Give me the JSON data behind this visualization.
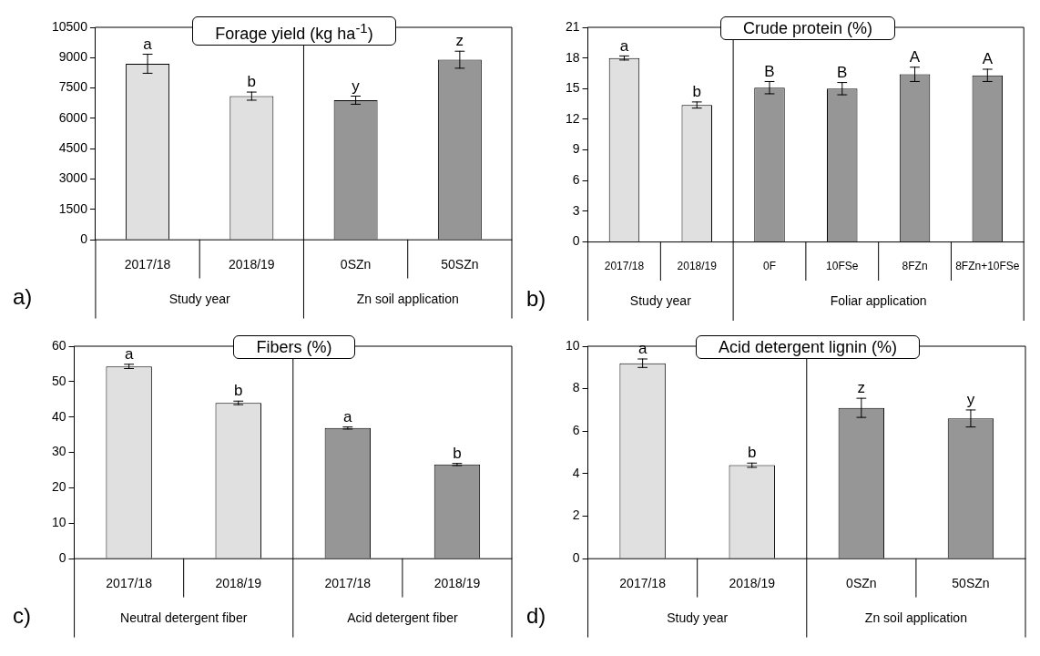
{
  "chart_data": [
    {
      "type": "bar",
      "title": "Forage yield (kg ha$^{-1}$)",
      "categories": [
        "2017/18",
        "2018/19",
        "0SZn",
        "50SZn"
      ],
      "values": [
        8700,
        7100,
        6900,
        8900
      ],
      "colors": [
        "#e0e0e0",
        "#e0e0e0",
        "#969696",
        "#969696"
      ],
      "errors": [
        470,
        200,
        200,
        420
      ],
      "value_labels": [
        "a",
        "b",
        "y",
        "z"
      ],
      "ylim": [
        0,
        10500
      ],
      "yticks": [
        0,
        1500,
        3000,
        4500,
        6000,
        7500,
        9000,
        10500
      ],
      "annotations": [
        "a)",
        "Study year",
        "Zn soil application"
      ]
    },
    {
      "type": "bar",
      "title": "Crude protein (%)",
      "categories": [
        "2017/18",
        "2018/19",
        "0F",
        "10FSe",
        "8FZn",
        "8FZn+10FSe"
      ],
      "values": [
        18.0,
        13.4,
        15.1,
        15.0,
        16.4,
        16.3
      ],
      "colors": [
        "#e0e0e0",
        "#e0e0e0",
        "#969696",
        "#969696",
        "#969696",
        "#969696"
      ],
      "errors": [
        0.2,
        0.3,
        0.6,
        0.6,
        0.7,
        0.6
      ],
      "value_labels": [
        "a",
        "b",
        "B",
        "B",
        "A",
        "A"
      ],
      "ylim": [
        0,
        21
      ],
      "yticks": [
        0,
        3,
        6,
        9,
        12,
        15,
        18,
        21
      ],
      "annotations": [
        "b)",
        "Study year",
        "Foliar application"
      ]
    },
    {
      "type": "bar",
      "title": "Fibers (%)",
      "categories": [
        "2017/18",
        "2018/19",
        "2017/18",
        "2018/19"
      ],
      "values": [
        54.3,
        44.0,
        36.9,
        26.6
      ],
      "colors": [
        "#e0e0e0",
        "#e0e0e0",
        "#969696",
        "#969696"
      ],
      "errors": [
        0.6,
        0.5,
        0.3,
        0.3
      ],
      "value_labels": [
        "a",
        "b",
        "a",
        "b"
      ],
      "ylim": [
        0,
        60
      ],
      "yticks": [
        0,
        10,
        20,
        30,
        40,
        50,
        60
      ],
      "annotations": [
        "c)",
        "Neutral detergent fiber",
        "Acid detergent fiber"
      ]
    },
    {
      "type": "bar",
      "title": "Acid detergent lignin (%)",
      "categories": [
        "2017/18",
        "2018/19",
        "0SZn",
        "50SZn"
      ],
      "values": [
        9.2,
        4.4,
        7.1,
        6.6
      ],
      "colors": [
        "#e0e0e0",
        "#e0e0e0",
        "#969696",
        "#969696"
      ],
      "errors": [
        0.2,
        0.1,
        0.45,
        0.4
      ],
      "value_labels": [
        "a",
        "b",
        "z",
        "y"
      ],
      "ylim": [
        0,
        10
      ],
      "yticks": [
        0,
        2,
        4,
        6,
        8,
        10
      ],
      "annotations": [
        "d)",
        "Study year",
        "Zn soil application"
      ]
    }
  ]
}
